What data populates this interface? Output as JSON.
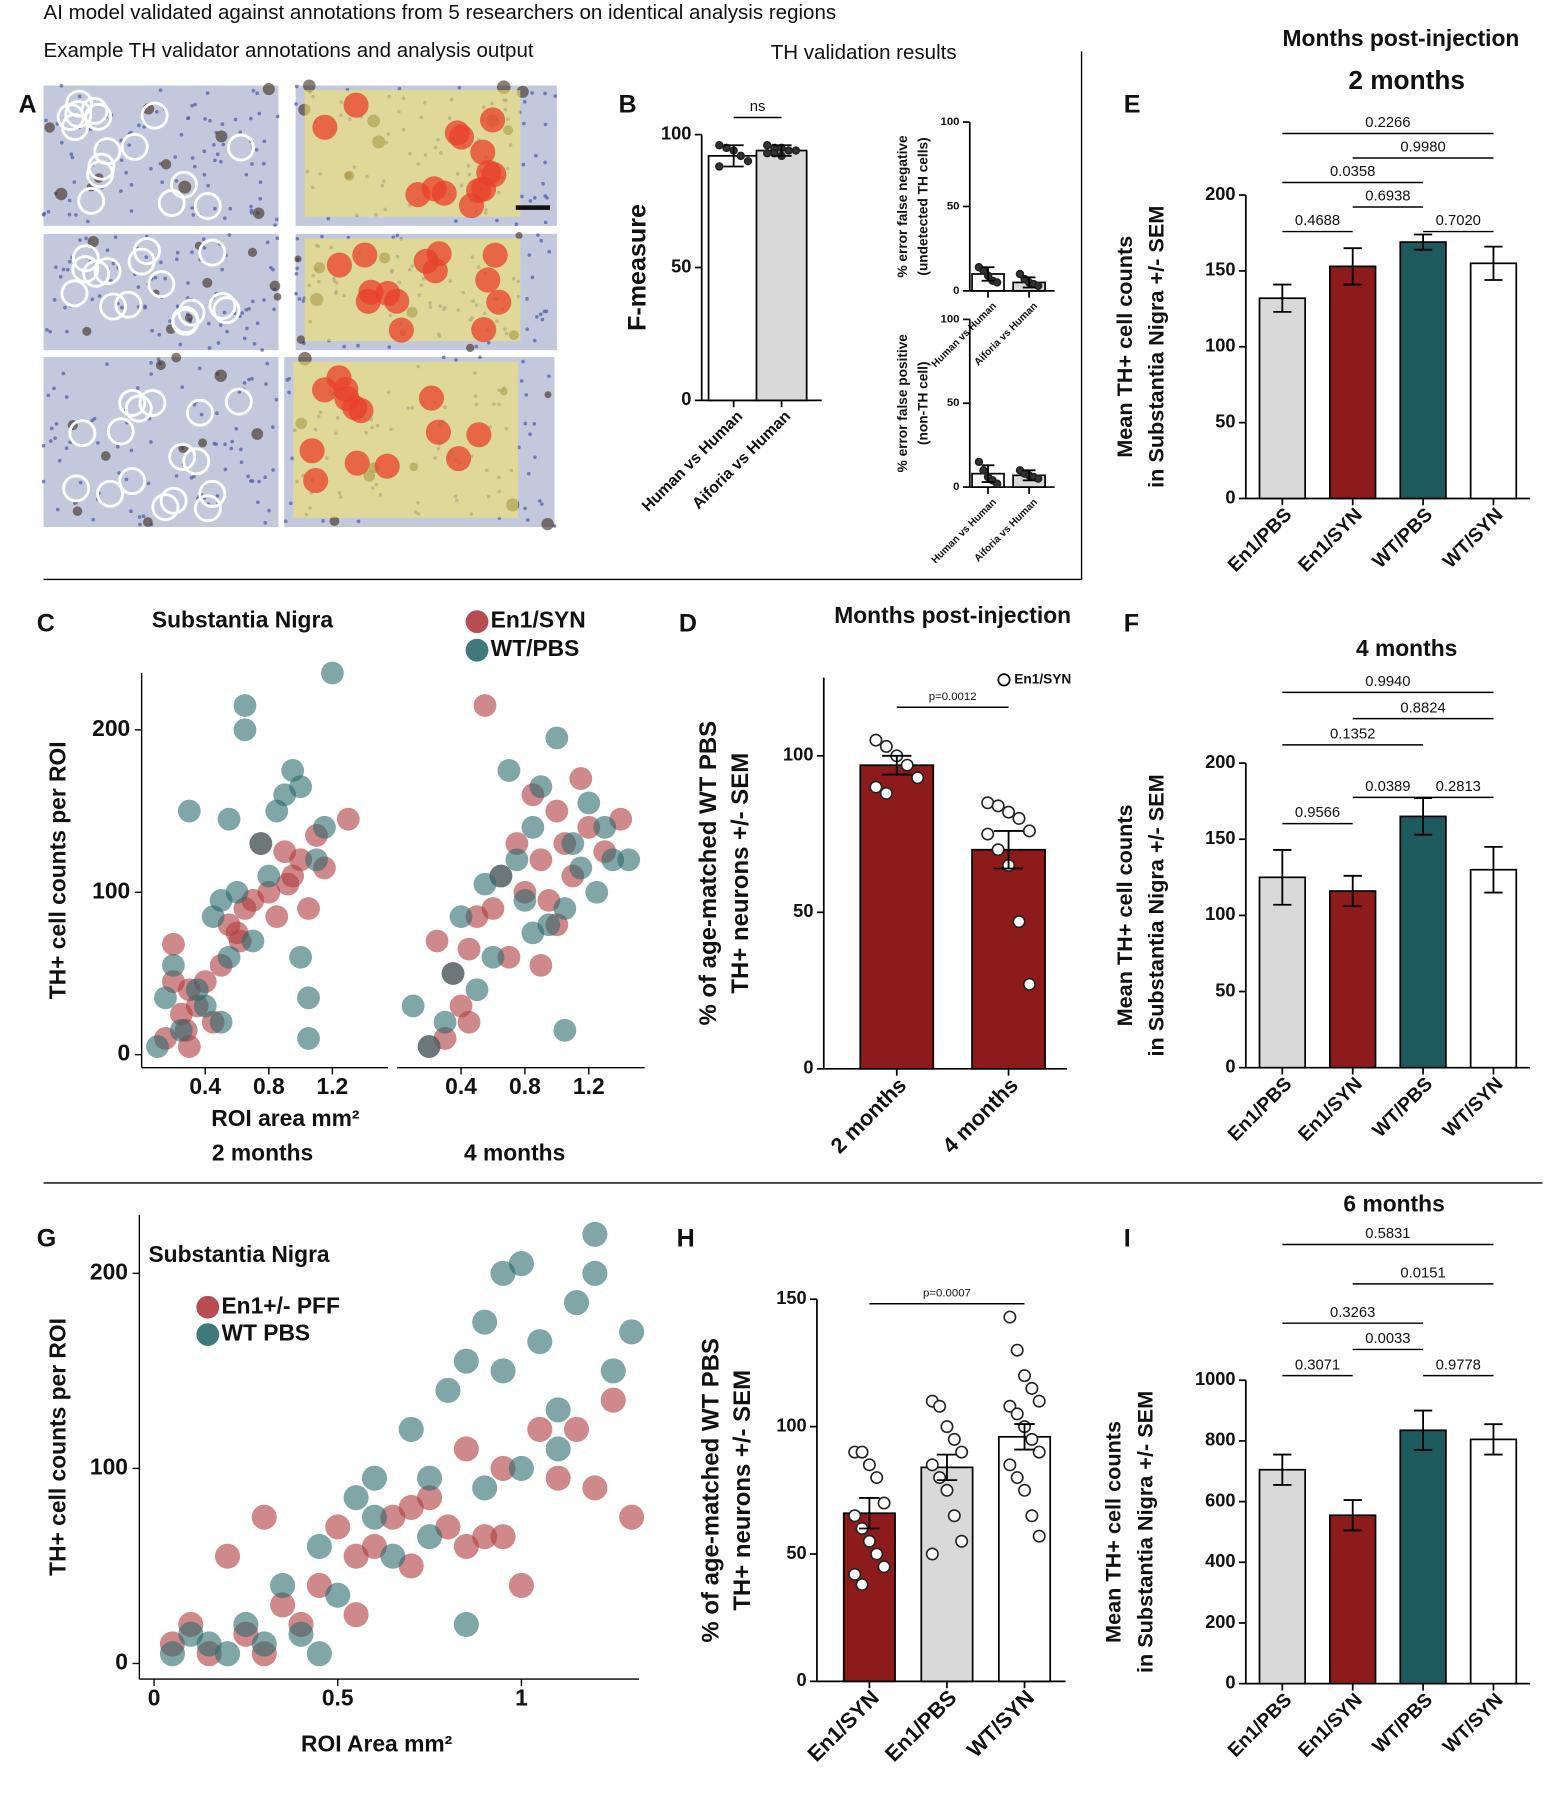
{
  "header": {
    "line1": "AI model validated against annotations from 5 researchers on identical analysis regions",
    "line2": "Example TH validator annotations and analysis output",
    "b_title": "TH validation results"
  },
  "panel_labels": [
    "A",
    "B",
    "E",
    "C",
    "D",
    "F",
    "G",
    "H",
    "I"
  ],
  "chart_data": [
    {
      "type": "bar",
      "ylabel": [
        "F-measure"
      ],
      "categories": [
        "Human vs Human",
        "Aiforia vs Human"
      ],
      "values": [
        92,
        94
      ],
      "errors": [
        4,
        2
      ],
      "colors": [
        "#ffffff",
        "#d9d9d9"
      ],
      "points": [
        [
          96,
          95,
          94,
          92,
          90,
          88
        ],
        [
          96,
          95,
          95,
          94,
          94,
          93,
          93,
          92
        ]
      ],
      "ylim": [
        0,
        100
      ],
      "yticks": [
        0,
        50,
        100
      ],
      "comparisons": [
        {
          "from": 0,
          "to": 1,
          "label": "ns",
          "color": "#000000"
        }
      ]
    },
    {
      "type": "bar",
      "ylabel": [
        "% error false negative",
        "(undetected TH cells)"
      ],
      "categories": [
        "Human vs Human",
        "Aiforia vs Human"
      ],
      "values": [
        10,
        5
      ],
      "errors": [
        4,
        3
      ],
      "colors": [
        "#ffffff",
        "#d9d9d9"
      ],
      "points": [
        [
          14,
          12,
          9,
          6,
          5
        ],
        [
          10,
          7,
          5,
          4,
          3
        ]
      ],
      "ylim": [
        0,
        100
      ],
      "yticks": [
        0,
        50,
        100
      ]
    },
    {
      "type": "bar",
      "ylabel": [
        "% error false positive",
        "(non-TH cell)"
      ],
      "categories": [
        "Human vs Human",
        "Aiforia vs Human"
      ],
      "values": [
        8,
        7
      ],
      "errors": [
        5,
        3
      ],
      "colors": [
        "#ffffff",
        "#d9d9d9"
      ],
      "points": [
        [
          15,
          10,
          6,
          4,
          2
        ],
        [
          10,
          8,
          7,
          6,
          5
        ]
      ],
      "ylim": [
        0,
        100
      ],
      "yticks": [
        0,
        50,
        100
      ]
    },
    {
      "type": "bar",
      "supertitle": "Months post-injection",
      "title": "2 months",
      "ylabel": [
        "Mean TH+ cell counts",
        "in Substantia Nigra +/- SEM"
      ],
      "categories": [
        "En1/PBS",
        "En1/SYN",
        "WT/PBS",
        "WT/SYN"
      ],
      "values": [
        132,
        153,
        169,
        155
      ],
      "errors": [
        9,
        12,
        5,
        11
      ],
      "colors": [
        "#d9d9d9",
        "#8e1b1b",
        "#1d5a5d",
        "#ffffff"
      ],
      "ylim": [
        0,
        200
      ],
      "yticks": [
        0,
        50,
        100,
        150,
        200
      ],
      "comparisons": [
        {
          "from": 0,
          "to": 1,
          "label": "0.4688",
          "color": "#000000"
        },
        {
          "from": 1,
          "to": 2,
          "label": "0.6938",
          "color": "#000000"
        },
        {
          "from": 2,
          "to": 3,
          "label": "0.7020",
          "color": "#000000"
        },
        {
          "from": 0,
          "to": 2,
          "label": "0.0358",
          "color": "#000000"
        },
        {
          "from": 1,
          "to": 3,
          "label": "0.9980",
          "color": "#000000"
        },
        {
          "from": 0,
          "to": 3,
          "label": "0.2266",
          "color": "#000000"
        }
      ]
    },
    {
      "type": "bar",
      "title": "4 months",
      "ylabel": [
        "Mean TH+ cell counts",
        "in Substantia Nigra +/- SEM"
      ],
      "categories": [
        "En1/PBS",
        "En1/SYN",
        "WT/PBS",
        "WT/SYN"
      ],
      "values": [
        125,
        116,
        165,
        130
      ],
      "errors": [
        18,
        10,
        12,
        15
      ],
      "colors": [
        "#d9d9d9",
        "#8e1b1b",
        "#1d5a5d",
        "#ffffff"
      ],
      "ylim": [
        0,
        200
      ],
      "yticks": [
        0,
        50,
        100,
        150,
        200
      ],
      "comparisons": [
        {
          "from": 0,
          "to": 1,
          "label": "0.9566",
          "color": "#000000"
        },
        {
          "from": 1,
          "to": 2,
          "label": "0.0389",
          "color": "#c0262d"
        },
        {
          "from": 2,
          "to": 3,
          "label": "0.2813",
          "color": "#000000"
        },
        {
          "from": 0,
          "to": 2,
          "label": "0.1352",
          "color": "#000000"
        },
        {
          "from": 1,
          "to": 3,
          "label": "0.8824",
          "color": "#000000"
        },
        {
          "from": 0,
          "to": 3,
          "label": "0.9940",
          "color": "#000000"
        }
      ]
    },
    {
      "type": "bar",
      "title": "6 months",
      "ylabel": [
        "Mean TH+ cell counts",
        "in Substantia Nigra +/- SEM"
      ],
      "categories": [
        "En1/PBS",
        "En1/SYN",
        "WT/PBS",
        "WT/SYN"
      ],
      "values": [
        705,
        555,
        835,
        805
      ],
      "errors": [
        50,
        50,
        65,
        50
      ],
      "colors": [
        "#d9d9d9",
        "#8e1b1b",
        "#1d5a5d",
        "#ffffff"
      ],
      "ylim": [
        0,
        1000
      ],
      "yticks": [
        0,
        200,
        400,
        600,
        800,
        1000
      ],
      "comparisons": [
        {
          "from": 0,
          "to": 1,
          "label": "0.3071",
          "color": "#000000"
        },
        {
          "from": 1,
          "to": 2,
          "label": "0.0033",
          "color": "#c0262d"
        },
        {
          "from": 2,
          "to": 3,
          "label": "0.9778",
          "color": "#000000"
        },
        {
          "from": 0,
          "to": 2,
          "label": "0.3263",
          "color": "#000000"
        },
        {
          "from": 1,
          "to": 3,
          "label": "0.0151",
          "color": "#c0262d"
        },
        {
          "from": 0,
          "to": 3,
          "label": "0.5831",
          "color": "#000000"
        }
      ]
    },
    {
      "type": "scatter",
      "title": "Substantia Nigra",
      "xlabel": "ROI area mm²",
      "ylabel": "TH+ cell counts per ROI",
      "subtitles": [
        "2 months",
        "4 months"
      ],
      "xlim": [
        0,
        1.55
      ],
      "xticks": [
        0.4,
        0.8,
        1.2
      ],
      "ylim": [
        -8,
        235
      ],
      "yticks": [
        0,
        100,
        200
      ],
      "series": [
        {
          "name": "En1/SYN",
          "color": "#b03a3e",
          "x": [
            [
              0.15,
              0.2,
              0.25,
              0.3,
              0.3,
              0.35,
              0.4,
              0.45,
              0.5,
              0.55,
              0.6,
              0.65,
              0.7,
              0.75,
              0.8,
              0.85,
              0.9,
              0.95,
              1.0,
              1.05,
              1.1,
              1.15,
              0.2,
              0.28,
              0.62,
              0.92,
              1.3
            ],
            [
              0.2,
              0.25,
              0.3,
              0.35,
              0.4,
              0.45,
              0.5,
              0.55,
              0.6,
              0.65,
              0.7,
              0.75,
              0.8,
              0.85,
              0.9,
              0.95,
              1.0,
              1.05,
              1.1,
              1.15,
              1.2,
              1.3,
              1.4,
              0.45,
              0.9,
              1.0
            ]
          ],
          "values": [
            [
              10,
              68,
              25,
              40,
              5,
              30,
              45,
              20,
              55,
              80,
              75,
              90,
              95,
              130,
              100,
              85,
              125,
              110,
              120,
              90,
              135,
              115,
              45,
              15,
              70,
              105,
              145
            ],
            [
              5,
              70,
              10,
              50,
              30,
              65,
              85,
              215,
              90,
              110,
              60,
              130,
              100,
              160,
              120,
              95,
              150,
              130,
              110,
              170,
              140,
              125,
              145,
              20,
              55,
              80
            ]
          ]
        },
        {
          "name": "WT/PBS",
          "color": "#2b6a6e",
          "x": [
            [
              0.1,
              0.15,
              0.2,
              0.25,
              0.3,
              0.35,
              0.4,
              0.45,
              0.5,
              0.5,
              0.55,
              0.6,
              0.65,
              0.7,
              0.75,
              0.8,
              0.85,
              0.9,
              0.95,
              1.0,
              1.05,
              1.1,
              1.15,
              1.2,
              0.65,
              0.55,
              1.0,
              1.05
            ],
            [
              0.1,
              0.2,
              0.3,
              0.35,
              0.4,
              0.5,
              0.55,
              0.6,
              0.65,
              0.7,
              0.75,
              0.8,
              0.85,
              0.9,
              0.95,
              1.0,
              1.05,
              1.1,
              1.15,
              1.2,
              1.25,
              1.3,
              1.35,
              1.45,
              0.85,
              1.05
            ]
          ],
          "values": [
            [
              5,
              35,
              55,
              15,
              150,
              40,
              30,
              85,
              95,
              20,
              60,
              100,
              215,
              70,
              130,
              110,
              150,
              160,
              175,
              165,
              10,
              120,
              140,
              235,
              200,
              145,
              60,
              35
            ],
            [
              30,
              5,
              20,
              50,
              85,
              40,
              105,
              60,
              110,
              175,
              120,
              95,
              140,
              165,
              80,
              195,
              15,
              130,
              115,
              155,
              100,
              140,
              120,
              120,
              75,
              90
            ]
          ]
        }
      ]
    },
    {
      "type": "bar",
      "title": "Months post-injection",
      "legend": "En1/SYN",
      "ylabel": [
        "% of age-matched WT PBS",
        "TH+ neurons +/- SEM"
      ],
      "categories": [
        "2 months",
        "4 months"
      ],
      "values": [
        97,
        70
      ],
      "errors": [
        3,
        6
      ],
      "colors": [
        "#8e1b1b",
        "#8e1b1b"
      ],
      "points": [
        [
          105,
          103,
          100,
          97,
          93,
          90,
          88
        ],
        [
          85,
          84,
          82,
          80,
          76,
          75,
          70,
          65,
          47,
          27
        ]
      ],
      "ylim": [
        0,
        125
      ],
      "yticks": [
        0,
        50,
        100
      ],
      "comparisons": [
        {
          "from": 0,
          "to": 1,
          "label": "p=0.0012",
          "color": "#c0262d"
        }
      ]
    },
    {
      "type": "bar",
      "ylabel": [
        "% of age-matched WT PBS",
        "TH+ neurons +/- SEM"
      ],
      "categories": [
        "En1/SYN",
        "En1/PBS",
        "WT/SYN"
      ],
      "values": [
        66,
        84,
        96
      ],
      "errors": [
        6,
        5,
        5
      ],
      "colors": [
        "#8e1b1b",
        "#d9d9d9",
        "#ffffff"
      ],
      "points": [
        [
          90,
          90,
          85,
          80,
          70,
          65,
          60,
          55,
          50,
          45,
          42,
          38
        ],
        [
          110,
          108,
          100,
          95,
          90,
          85,
          80,
          75,
          65,
          55,
          50
        ],
        [
          143,
          130,
          120,
          115,
          110,
          108,
          105,
          100,
          95,
          90,
          85,
          80,
          75,
          65,
          57
        ]
      ],
      "ylim": [
        0,
        150
      ],
      "yticks": [
        0,
        50,
        100,
        150
      ],
      "comparisons": [
        {
          "from": 0,
          "to": 2,
          "label": "p=0.0007",
          "color": "#000000"
        }
      ]
    },
    {
      "type": "scatter",
      "title": "Substantia Nigra",
      "xlabel": "ROI Area mm²",
      "ylabel": "TH+ cell counts per ROI",
      "xlim": [
        -0.04,
        1.32
      ],
      "xticks": [
        0,
        0.5,
        1
      ],
      "ylim": [
        -8,
        230
      ],
      "yticks": [
        0,
        100,
        200
      ],
      "series": [
        {
          "name": "En1+/- PFF",
          "color": "#b03a3e",
          "x": [
            [
              0.05,
              0.1,
              0.15,
              0.2,
              0.25,
              0.3,
              0.35,
              0.4,
              0.45,
              0.5,
              0.55,
              0.6,
              0.65,
              0.7,
              0.75,
              0.8,
              0.85,
              0.9,
              0.95,
              1.0,
              1.05,
              1.1,
              1.15,
              1.2,
              1.25,
              1.3,
              0.3,
              0.55,
              0.7,
              0.85,
              0.95
            ]
          ],
          "values": [
            [
              10,
              20,
              5,
              55,
              15,
              75,
              30,
              20,
              40,
              70,
              25,
              60,
              75,
              50,
              85,
              70,
              60,
              65,
              100,
              40,
              120,
              95,
              120,
              90,
              135,
              75,
              5,
              55,
              80,
              110,
              65
            ]
          ]
        },
        {
          "name": "WT PBS",
          "color": "#2b6a6e",
          "x": [
            [
              0.05,
              0.1,
              0.15,
              0.2,
              0.25,
              0.3,
              0.35,
              0.4,
              0.45,
              0.5,
              0.55,
              0.6,
              0.65,
              0.7,
              0.75,
              0.8,
              0.85,
              0.9,
              0.95,
              1.0,
              1.05,
              1.1,
              1.15,
              1.2,
              1.25,
              1.3,
              0.75,
              0.85,
              0.95,
              1.0,
              1.1,
              1.2,
              0.6,
              0.9,
              0.45
            ]
          ],
          "values": [
            [
              5,
              15,
              10,
              5,
              20,
              10,
              40,
              15,
              60,
              35,
              85,
              75,
              55,
              120,
              95,
              140,
              155,
              175,
              200,
              100,
              165,
              130,
              185,
              220,
              150,
              170,
              65,
              20,
              150,
              205,
              110,
              200,
              95,
              90,
              5
            ]
          ]
        }
      ]
    }
  ]
}
